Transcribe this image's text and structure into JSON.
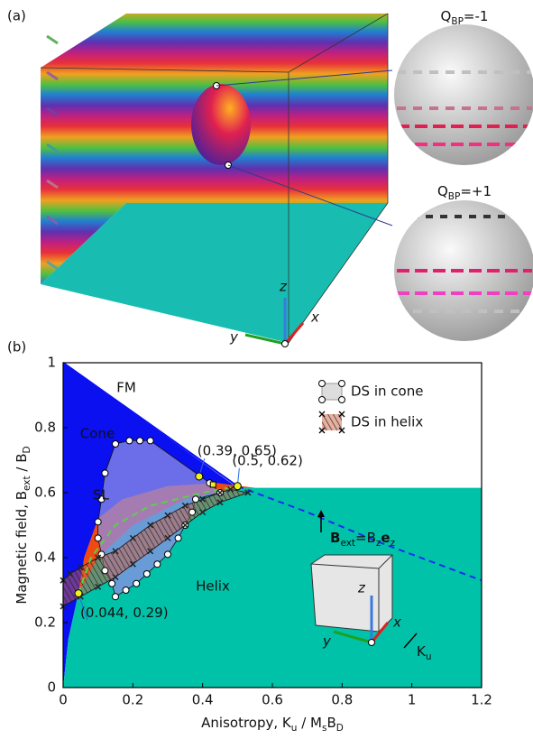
{
  "panel_a": {
    "label": "(a)",
    "spheres": [
      {
        "label": [
          {
            "text": "Q"
          },
          {
            "text": "BP",
            "sub": true
          },
          {
            "text": "=-1"
          }
        ]
      },
      {
        "label": [
          {
            "text": "Q"
          },
          {
            "text": "BP",
            "sub": true
          },
          {
            "text": "=+1"
          }
        ]
      }
    ],
    "axes": {
      "z": "z",
      "x": "x",
      "y": "y"
    }
  },
  "chart_data": {
    "type": "phase",
    "label": "(b)",
    "x_label": [
      {
        "text": "Anisotropy, K"
      },
      {
        "text": "u",
        "sub": true
      },
      {
        "text": " / M"
      },
      {
        "text": "s",
        "sub": true
      },
      {
        "text": "B"
      },
      {
        "text": "D",
        "sub": true
      }
    ],
    "y_label": [
      {
        "text": "Magnetic field, B"
      },
      {
        "text": "ext",
        "sub": true
      },
      {
        "text": " / B"
      },
      {
        "text": "D",
        "sub": true
      }
    ],
    "xlim": [
      0,
      1.2
    ],
    "xticks": [
      0,
      0.2,
      0.4,
      0.6,
      0.8,
      1,
      1.2
    ],
    "ylim": [
      0,
      1
    ],
    "yticks": [
      0,
      0.2,
      0.4,
      0.6,
      0.8,
      1
    ],
    "regions": [
      {
        "name": "FM",
        "color": "#ffffff",
        "x": [
          0,
          1.2,
          1.2,
          0.5
        ],
        "y": [
          1,
          1,
          0.615,
          0.615
        ]
      },
      {
        "name": "Cone",
        "color": "#0a10f0",
        "x": [
          0,
          0.5,
          0.35,
          0.2,
          0.1,
          0.044,
          0.015,
          0
        ],
        "y": [
          1,
          0.615,
          0.58,
          0.5,
          0.4,
          0.29,
          0.15,
          0
        ]
      },
      {
        "name": "SL",
        "color": "#f04a14",
        "x": [
          0.044,
          0.06,
          0.1,
          0.17,
          0.3,
          0.44,
          0.55,
          0.45,
          0.3,
          0.15,
          0.05
        ],
        "y": [
          0.29,
          0.4,
          0.52,
          0.58,
          0.62,
          0.63,
          0.615,
          0.57,
          0.48,
          0.38,
          0.3
        ]
      },
      {
        "name": "Helix",
        "color": "#00c2a8",
        "x": [
          1.2,
          1.2,
          0.5,
          0.35,
          0.2,
          0.1,
          0.044,
          0.015,
          0
        ],
        "y": [
          0,
          0.615,
          0.615,
          0.58,
          0.5,
          0.4,
          0.29,
          0.15,
          0
        ]
      }
    ],
    "series": [
      {
        "name": "DS in cone",
        "marker": "circle",
        "color": "#8c8ee6",
        "x": [
          0.15,
          0.14,
          0.12,
          0.11,
          0.1,
          0.1,
          0.11,
          0.12,
          0.15,
          0.19,
          0.22,
          0.25,
          0.42,
          0.45,
          0.38,
          0.37,
          0.35,
          0.33,
          0.3,
          0.27,
          0.24,
          0.21,
          0.18
        ],
        "y": [
          0.28,
          0.32,
          0.36,
          0.41,
          0.46,
          0.51,
          0.58,
          0.66,
          0.75,
          0.76,
          0.76,
          0.76,
          0.63,
          0.6,
          0.58,
          0.54,
          0.5,
          0.46,
          0.41,
          0.38,
          0.35,
          0.32,
          0.3
        ]
      },
      {
        "name": "DS in helix",
        "marker": "cross",
        "color": "#222222",
        "x": [
          0,
          0.02,
          0.05,
          0.1,
          0.15,
          0.2,
          0.25,
          0.3,
          0.35,
          0.4,
          0.45,
          0.48,
          0.53,
          0.45,
          0.4,
          0.35,
          0.3,
          0.25,
          0.2,
          0.15,
          0.1,
          0.05,
          0
        ],
        "y": [
          0.33,
          0.35,
          0.37,
          0.4,
          0.42,
          0.46,
          0.5,
          0.53,
          0.56,
          0.58,
          0.6,
          0.61,
          0.6,
          0.57,
          0.54,
          0.5,
          0.46,
          0.42,
          0.38,
          0.34,
          0.31,
          0.28,
          0.25
        ]
      }
    ],
    "lines": [
      {
        "color": "#0a10f0",
        "dash": false,
        "x": [
          0,
          0.5
        ],
        "y": [
          1,
          0.62
        ]
      },
      {
        "color": "#1a2cf0",
        "dash": true,
        "x": [
          0.5,
          0.7,
          0.9,
          1.05,
          1.2
        ],
        "y": [
          0.62,
          0.54,
          0.45,
          0.39,
          0.33
        ]
      },
      {
        "color": "#5ad04a",
        "dash": true,
        "x": [
          0.044,
          0.08,
          0.15,
          0.25,
          0.4,
          0.5
        ],
        "y": [
          0.29,
          0.4,
          0.5,
          0.56,
          0.6,
          0.62
        ]
      }
    ],
    "highlights": {
      "color": "#f0f020",
      "x": [
        0.39,
        0.5,
        0.044
      ],
      "y": [
        0.65,
        0.62,
        0.29
      ],
      "labels": [
        "(0.39, 0.65)",
        "(0.5, 0.62)",
        "(0.044, 0.29)"
      ]
    },
    "inset": {
      "field": [
        {
          "text": "B",
          "bold": true
        },
        {
          "text": "ext",
          "sub": true
        },
        {
          "text": "=B"
        },
        {
          "text": "z",
          "sub": true
        },
        {
          "text": "e",
          "bold": true
        },
        {
          "text": "z",
          "sub": true
        }
      ],
      "axes": {
        "z": "z",
        "x": "x",
        "y": "y"
      },
      "anisotropy": [
        {
          "text": "K"
        },
        {
          "text": "u",
          "sub": true
        }
      ]
    }
  }
}
